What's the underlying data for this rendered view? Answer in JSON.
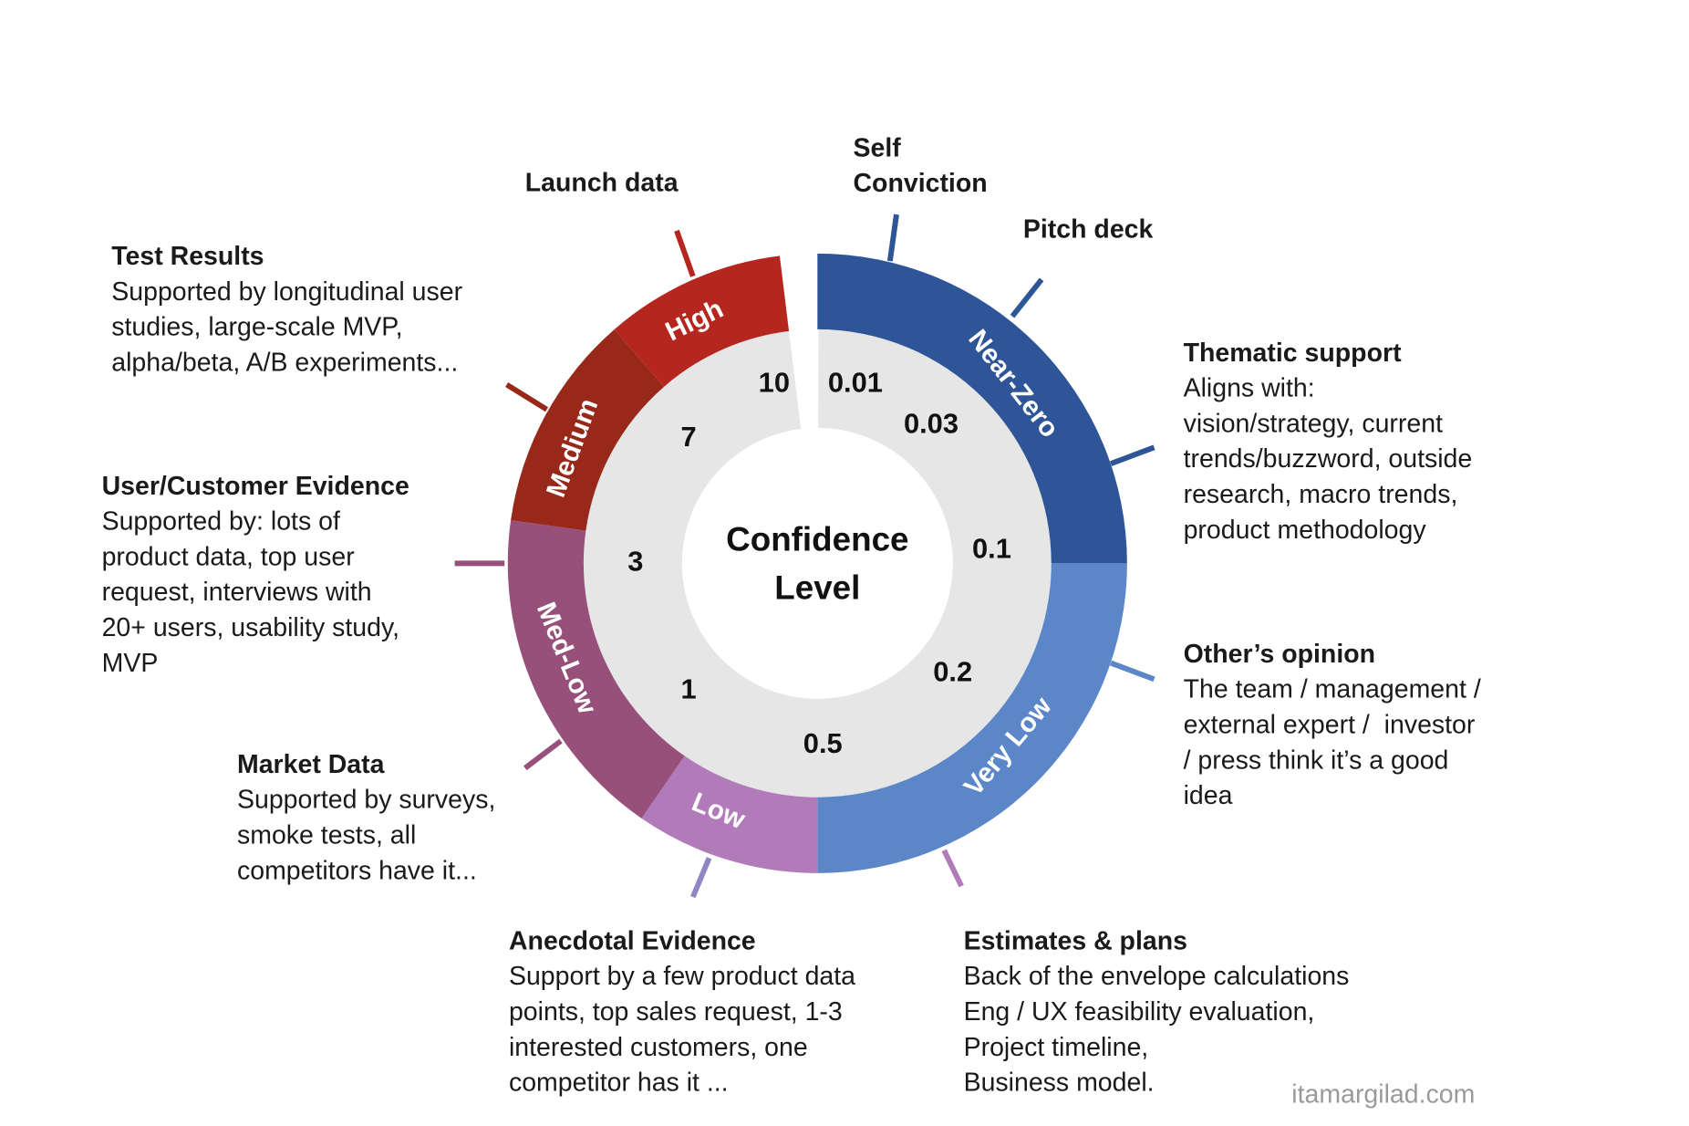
{
  "center_title": [
    "Confidence",
    "Level"
  ],
  "segments": [
    {
      "label": "Near-Zero",
      "color": "#2e5597"
    },
    {
      "label": "Very Low",
      "color": "#5b86c7"
    },
    {
      "label": "Low",
      "color": "#b07bb8"
    },
    {
      "label": "Med-Low",
      "color": "#96507a"
    },
    {
      "label": "Medium",
      "color": "#98291a"
    },
    {
      "label": "High",
      "color": "#b5261e"
    }
  ],
  "scores": [
    "10",
    "0.01",
    "0.03",
    "0.1",
    "0.2",
    "0.5",
    "1",
    "3",
    "7"
  ],
  "evidence": [
    {
      "title": [
        "Self",
        "Conviction"
      ],
      "description": []
    },
    {
      "title": [
        "Pitch deck"
      ],
      "description": []
    },
    {
      "title": [
        "Thematic support"
      ],
      "description": [
        "Aligns with:",
        "vision/strategy, current",
        "trends/buzzword, outside",
        "research, macro trends,",
        "product methodology"
      ]
    },
    {
      "title": [
        "Other’s opinion"
      ],
      "description": [
        "The team / management /",
        "external expert /  investor",
        "/ press think it’s a good",
        "idea"
      ]
    },
    {
      "title": [
        "Estimates & plans"
      ],
      "description": [
        "Back of the envelope calculations",
        "Eng / UX feasibility evaluation,",
        "Project timeline,",
        "Business model."
      ]
    },
    {
      "title": [
        "Anecdotal Evidence"
      ],
      "description": [
        "Support by a few product data",
        "points, top sales request, 1-3",
        "interested customers, one",
        "competitor has it ..."
      ]
    },
    {
      "title": [
        "Market Data"
      ],
      "description": [
        "Supported by surveys,",
        "smoke tests, all",
        "competitors have it..."
      ]
    },
    {
      "title": [
        "User/Customer Evidence"
      ],
      "description": [
        "Supported by: lots of",
        "product data, top user",
        "request, interviews with",
        "20+ users, usability study,",
        "MVP"
      ]
    },
    {
      "title": [
        "Test Results"
      ],
      "description": [
        "Supported by longitudinal user",
        "studies, large-scale MVP,",
        "alpha/beta, A/B experiments..."
      ]
    },
    {
      "title": [
        "Launch data"
      ],
      "description": []
    }
  ],
  "credit": "itamargilad.com"
}
